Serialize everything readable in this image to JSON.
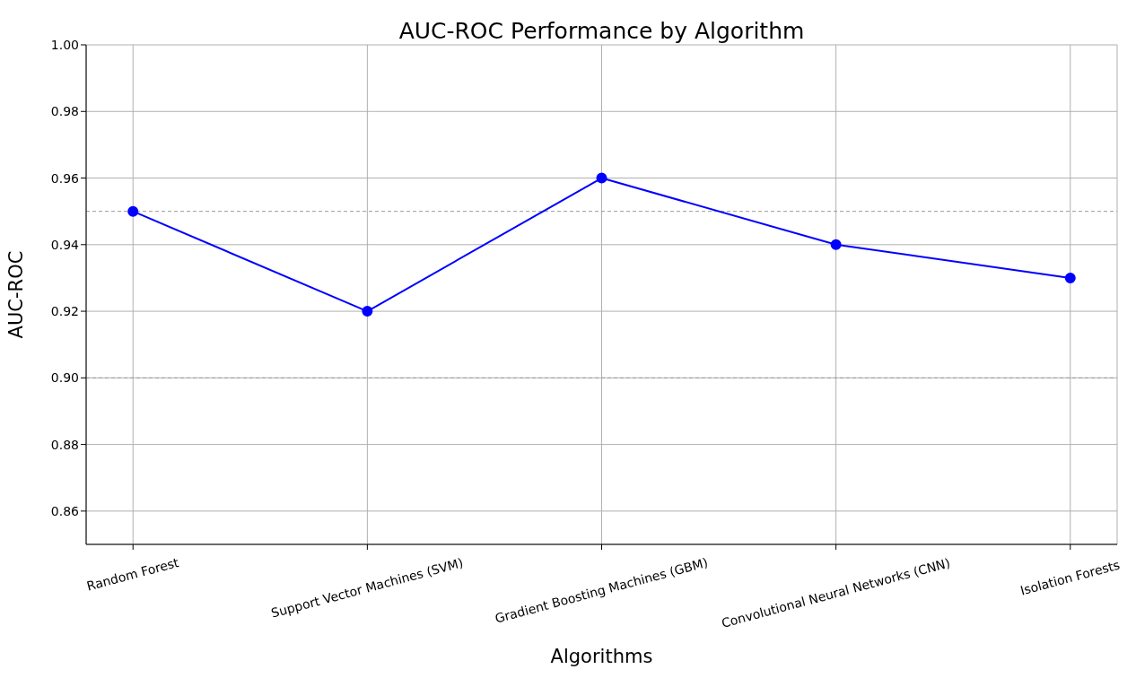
{
  "chart_data": {
    "type": "line",
    "title": "AUC-ROC Performance by Algorithm",
    "xlabel": "Algorithms",
    "ylabel": "AUC-ROC",
    "categories": [
      "Random Forest",
      "Support Vector Machines (SVM)",
      "Gradient Boosting Machines (GBM)",
      "Convolutional Neural Networks (CNN)",
      "Isolation Forests"
    ],
    "series": [
      {
        "color": "#0000ff",
        "values": [
          0.95,
          0.92,
          0.96,
          0.94,
          0.93
        ]
      }
    ],
    "ylim": [
      0.85,
      1.0
    ],
    "yticks": [
      0.86,
      0.88,
      {
        "value": 0.9,
        "label": "0.90"
      },
      0.92,
      0.94,
      0.96,
      0.98,
      {
        "value": 1.0,
        "label": "1.00"
      }
    ],
    "ref_lines": [
      {
        "axis": "y",
        "value": 0.95,
        "color": "#999999",
        "line_style": "dashed"
      },
      {
        "axis": "y",
        "value": 0.9,
        "color": "#999999",
        "line_style": "dashed"
      }
    ],
    "grid": true,
    "marker": "circle",
    "line_style": "solid"
  }
}
